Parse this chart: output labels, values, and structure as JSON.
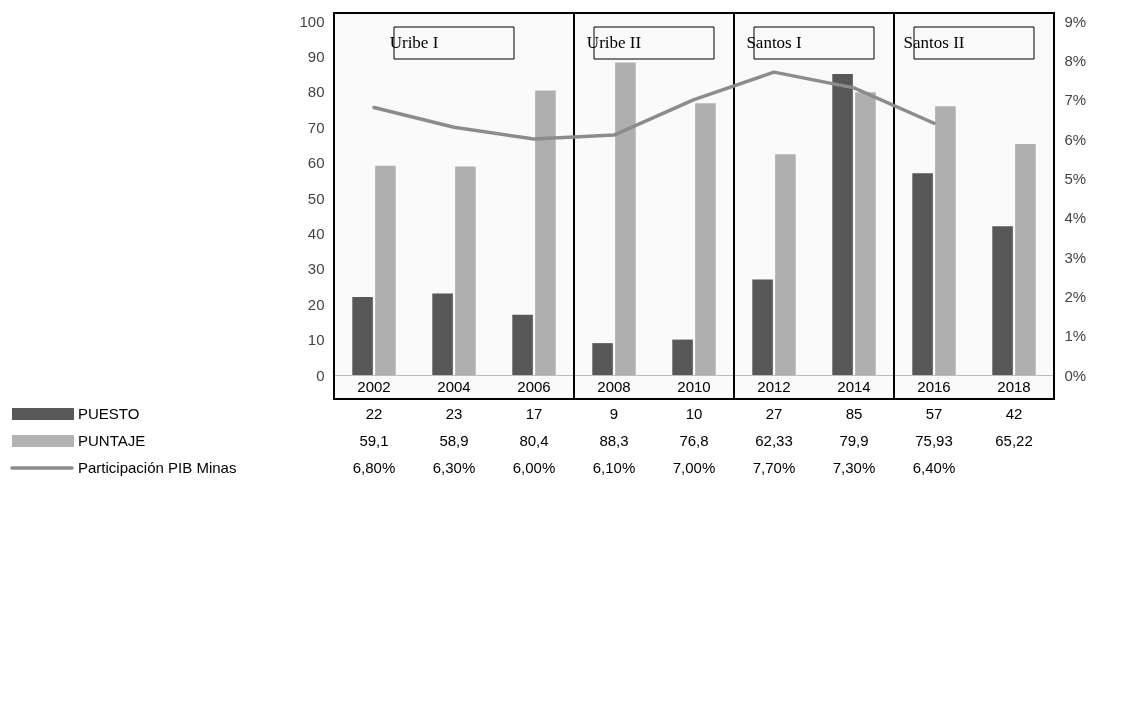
{
  "chart_data": {
    "type": "bar",
    "categories": [
      "2002",
      "2004",
      "2006",
      "2008",
      "2010",
      "2012",
      "2014",
      "2016",
      "2018"
    ],
    "series": [
      {
        "name": "PUESTO",
        "type": "bar",
        "color": "#595959",
        "values": [
          22,
          23,
          17,
          9,
          10,
          27,
          85,
          57,
          42
        ],
        "value_labels": [
          "22",
          "23",
          "17",
          "9",
          "10",
          "27",
          "85",
          "57",
          "42"
        ]
      },
      {
        "name": "PUNTAJE",
        "type": "bar",
        "color": "#b3b3b3",
        "values": [
          59.1,
          58.9,
          80.4,
          88.3,
          76.8,
          62.33,
          79.9,
          75.93,
          65.22
        ],
        "value_labels": [
          "59,1",
          "58,9",
          "80,4",
          "88,3",
          "76,8",
          "62,33",
          "79,9",
          "75,93",
          "65,22"
        ]
      },
      {
        "name": "Participación PIB Minas",
        "type": "line",
        "axis": "y2",
        "color": "#8c8c8c",
        "values": [
          6.8,
          6.3,
          6.0,
          6.1,
          7.0,
          7.7,
          7.3,
          6.4,
          null
        ],
        "value_labels": [
          "6,80%",
          "6,30%",
          "6,00%",
          "6,10%",
          "7,00%",
          "7,70%",
          "7,30%",
          "6,40%",
          null
        ]
      }
    ],
    "ylim": [
      0,
      100
    ],
    "yticks": [
      0,
      10,
      20,
      30,
      40,
      50,
      60,
      70,
      80,
      90,
      100
    ],
    "y2lim": [
      0,
      9
    ],
    "y2ticks": [
      {
        "value": 0,
        "label": "0%"
      },
      {
        "value": 1,
        "label": "1%"
      },
      {
        "value": 2,
        "label": "2%"
      },
      {
        "value": 3,
        "label": "3%"
      },
      {
        "value": 4,
        "label": "4%"
      },
      {
        "value": 5,
        "label": "5%"
      },
      {
        "value": 6,
        "label": "6%"
      },
      {
        "value": 7,
        "label": "7%"
      },
      {
        "value": 8,
        "label": "8%"
      },
      {
        "value": 9,
        "label": "9%"
      }
    ],
    "bands": [
      {
        "axis": "x",
        "from": "2002",
        "to": "2006",
        "label": "Uribe I"
      },
      {
        "axis": "x",
        "from": "2008",
        "to": "2010",
        "label": "Uribe II"
      },
      {
        "axis": "x",
        "from": "2012",
        "to": "2014",
        "label": "Santos I"
      },
      {
        "axis": "x",
        "from": "2016",
        "to": "2018",
        "label": "Santos II"
      }
    ],
    "legend": "bottom left",
    "marker": "none",
    "line_style": "solid"
  }
}
